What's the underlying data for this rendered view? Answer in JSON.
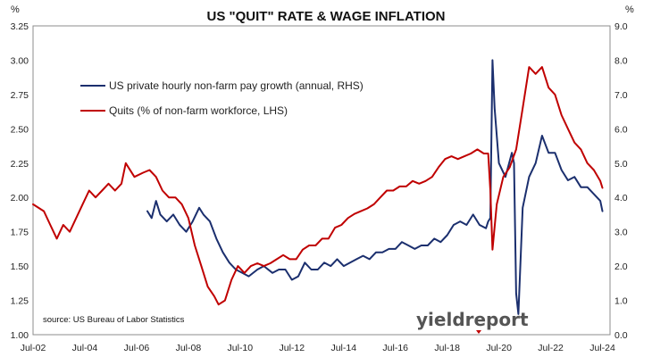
{
  "chart_data": {
    "type": "line",
    "title": "US \"QUIT\" RATE & WAGE INFLATION",
    "source": "source: US Bureau of Labor Statistics",
    "brand": "yieldreport",
    "grid": false,
    "legend_position": "top-left",
    "colors": {
      "wages": "#1b2f6e",
      "quits": "#c00000"
    },
    "x_ticks": [
      "Jul-02",
      "Jul-04",
      "Jul-06",
      "Jul-08",
      "Jul-10",
      "Jul-12",
      "Jul-14",
      "Jul-16",
      "Jul-18",
      "Jul-20",
      "Jul-22",
      "Jul-24"
    ],
    "y_left": {
      "unit": "%",
      "min": 1.0,
      "max": 3.25,
      "ticks": [
        "1.00",
        "1.25",
        "1.50",
        "1.75",
        "2.00",
        "2.25",
        "2.50",
        "2.75",
        "3.00",
        "3.25"
      ]
    },
    "y_right": {
      "unit": "%",
      "min": 0.0,
      "max": 9.0,
      "ticks": [
        "0.0",
        "1.0",
        "2.0",
        "3.0",
        "4.0",
        "5.0",
        "6.0",
        "7.0",
        "8.0",
        "9.0"
      ]
    },
    "series": [
      {
        "name": "US private hourly non-farm pay growth (annual, RHS)",
        "key": "wages",
        "axis": "right",
        "points": [
          [
            "2006-12",
            3.6
          ],
          [
            "2007-02",
            3.4
          ],
          [
            "2007-04",
            3.9
          ],
          [
            "2007-06",
            3.5
          ],
          [
            "2007-09",
            3.3
          ],
          [
            "2007-12",
            3.5
          ],
          [
            "2008-03",
            3.2
          ],
          [
            "2008-06",
            3.0
          ],
          [
            "2008-09",
            3.3
          ],
          [
            "2008-12",
            3.7
          ],
          [
            "2009-02",
            3.5
          ],
          [
            "2009-05",
            3.3
          ],
          [
            "2009-08",
            2.8
          ],
          [
            "2009-11",
            2.4
          ],
          [
            "2010-02",
            2.1
          ],
          [
            "2010-05",
            1.9
          ],
          [
            "2010-08",
            1.8
          ],
          [
            "2010-11",
            1.7
          ],
          [
            "2011-03",
            1.9
          ],
          [
            "2011-06",
            2.0
          ],
          [
            "2011-10",
            1.8
          ],
          [
            "2012-01",
            1.9
          ],
          [
            "2012-04",
            1.9
          ],
          [
            "2012-07",
            1.6
          ],
          [
            "2012-10",
            1.7
          ],
          [
            "2013-01",
            2.1
          ],
          [
            "2013-04",
            1.9
          ],
          [
            "2013-07",
            1.9
          ],
          [
            "2013-10",
            2.1
          ],
          [
            "2014-01",
            2.0
          ],
          [
            "2014-04",
            2.2
          ],
          [
            "2014-07",
            2.0
          ],
          [
            "2014-10",
            2.1
          ],
          [
            "2015-01",
            2.2
          ],
          [
            "2015-04",
            2.3
          ],
          [
            "2015-07",
            2.2
          ],
          [
            "2015-10",
            2.4
          ],
          [
            "2016-01",
            2.4
          ],
          [
            "2016-04",
            2.5
          ],
          [
            "2016-07",
            2.5
          ],
          [
            "2016-10",
            2.7
          ],
          [
            "2017-01",
            2.6
          ],
          [
            "2017-04",
            2.5
          ],
          [
            "2017-07",
            2.6
          ],
          [
            "2017-10",
            2.6
          ],
          [
            "2018-01",
            2.8
          ],
          [
            "2018-04",
            2.7
          ],
          [
            "2018-07",
            2.9
          ],
          [
            "2018-10",
            3.2
          ],
          [
            "2019-01",
            3.3
          ],
          [
            "2019-04",
            3.2
          ],
          [
            "2019-07",
            3.5
          ],
          [
            "2019-10",
            3.2
          ],
          [
            "2020-01",
            3.1
          ],
          [
            "2020-02",
            3.3
          ],
          [
            "2020-03",
            3.4
          ],
          [
            "2020-04",
            8.0
          ],
          [
            "2020-05",
            6.6
          ],
          [
            "2020-07",
            5.0
          ],
          [
            "2020-10",
            4.6
          ],
          [
            "2021-01",
            5.3
          ],
          [
            "2021-02",
            5.0
          ],
          [
            "2021-03",
            1.2
          ],
          [
            "2021-04",
            0.6
          ],
          [
            "2021-06",
            3.7
          ],
          [
            "2021-09",
            4.6
          ],
          [
            "2021-12",
            5.0
          ],
          [
            "2022-03",
            5.8
          ],
          [
            "2022-06",
            5.3
          ],
          [
            "2022-09",
            5.3
          ],
          [
            "2022-12",
            4.8
          ],
          [
            "2023-03",
            4.5
          ],
          [
            "2023-06",
            4.6
          ],
          [
            "2023-09",
            4.3
          ],
          [
            "2023-12",
            4.3
          ],
          [
            "2024-03",
            4.1
          ],
          [
            "2024-06",
            3.9
          ],
          [
            "2024-07",
            3.6
          ]
        ]
      },
      {
        "name": "Quits (% of non-farm workforce, LHS)",
        "key": "quits",
        "axis": "left",
        "points": [
          [
            "2002-07",
            1.95
          ],
          [
            "2002-12",
            1.9
          ],
          [
            "2003-03",
            1.8
          ],
          [
            "2003-06",
            1.7
          ],
          [
            "2003-09",
            1.8
          ],
          [
            "2003-12",
            1.75
          ],
          [
            "2004-03",
            1.85
          ],
          [
            "2004-06",
            1.95
          ],
          [
            "2004-09",
            2.05
          ],
          [
            "2004-12",
            2.0
          ],
          [
            "2005-03",
            2.05
          ],
          [
            "2005-06",
            2.1
          ],
          [
            "2005-09",
            2.05
          ],
          [
            "2005-12",
            2.1
          ],
          [
            "2006-02",
            2.25
          ],
          [
            "2006-06",
            2.15
          ],
          [
            "2006-10",
            2.18
          ],
          [
            "2007-01",
            2.2
          ],
          [
            "2007-04",
            2.15
          ],
          [
            "2007-07",
            2.05
          ],
          [
            "2007-10",
            2.0
          ],
          [
            "2008-01",
            2.0
          ],
          [
            "2008-04",
            1.95
          ],
          [
            "2008-07",
            1.85
          ],
          [
            "2008-10",
            1.65
          ],
          [
            "2009-01",
            1.5
          ],
          [
            "2009-04",
            1.35
          ],
          [
            "2009-07",
            1.28
          ],
          [
            "2009-09",
            1.22
          ],
          [
            "2009-12",
            1.25
          ],
          [
            "2010-03",
            1.4
          ],
          [
            "2010-06",
            1.5
          ],
          [
            "2010-09",
            1.45
          ],
          [
            "2010-12",
            1.5
          ],
          [
            "2011-03",
            1.52
          ],
          [
            "2011-06",
            1.5
          ],
          [
            "2011-09",
            1.52
          ],
          [
            "2011-12",
            1.55
          ],
          [
            "2012-03",
            1.58
          ],
          [
            "2012-06",
            1.55
          ],
          [
            "2012-09",
            1.55
          ],
          [
            "2012-12",
            1.62
          ],
          [
            "2013-03",
            1.65
          ],
          [
            "2013-06",
            1.65
          ],
          [
            "2013-09",
            1.7
          ],
          [
            "2013-12",
            1.7
          ],
          [
            "2014-03",
            1.78
          ],
          [
            "2014-06",
            1.8
          ],
          [
            "2014-09",
            1.85
          ],
          [
            "2014-12",
            1.88
          ],
          [
            "2015-03",
            1.9
          ],
          [
            "2015-06",
            1.92
          ],
          [
            "2015-09",
            1.95
          ],
          [
            "2015-12",
            2.0
          ],
          [
            "2016-03",
            2.05
          ],
          [
            "2016-06",
            2.05
          ],
          [
            "2016-09",
            2.08
          ],
          [
            "2016-12",
            2.08
          ],
          [
            "2017-03",
            2.12
          ],
          [
            "2017-06",
            2.1
          ],
          [
            "2017-09",
            2.12
          ],
          [
            "2017-12",
            2.15
          ],
          [
            "2018-03",
            2.22
          ],
          [
            "2018-06",
            2.28
          ],
          [
            "2018-09",
            2.3
          ],
          [
            "2018-12",
            2.28
          ],
          [
            "2019-03",
            2.3
          ],
          [
            "2019-06",
            2.32
          ],
          [
            "2019-09",
            2.35
          ],
          [
            "2019-12",
            2.32
          ],
          [
            "2020-02",
            2.32
          ],
          [
            "2020-03",
            2.05
          ],
          [
            "2020-04",
            1.62
          ],
          [
            "2020-06",
            1.95
          ],
          [
            "2020-09",
            2.15
          ],
          [
            "2020-12",
            2.22
          ],
          [
            "2021-03",
            2.35
          ],
          [
            "2021-06",
            2.65
          ],
          [
            "2021-09",
            2.95
          ],
          [
            "2021-12",
            2.9
          ],
          [
            "2022-03",
            2.95
          ],
          [
            "2022-06",
            2.8
          ],
          [
            "2022-09",
            2.75
          ],
          [
            "2022-12",
            2.6
          ],
          [
            "2023-03",
            2.5
          ],
          [
            "2023-06",
            2.4
          ],
          [
            "2023-09",
            2.35
          ],
          [
            "2023-12",
            2.25
          ],
          [
            "2024-03",
            2.2
          ],
          [
            "2024-06",
            2.12
          ],
          [
            "2024-07",
            2.07
          ]
        ]
      }
    ]
  }
}
